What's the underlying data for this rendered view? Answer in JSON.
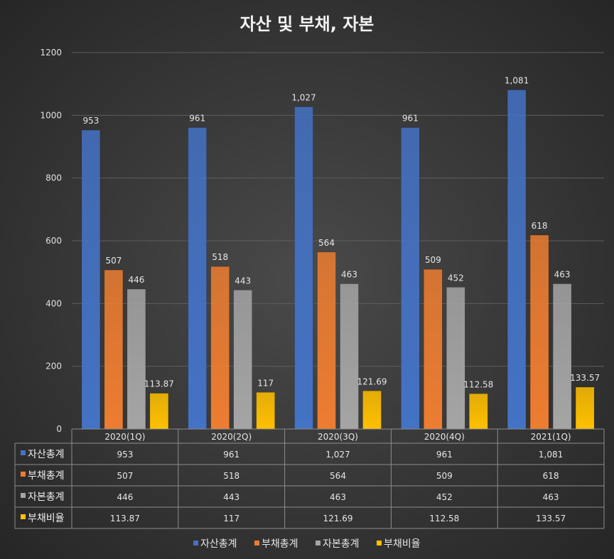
{
  "chart_data": {
    "type": "bar",
    "title": "자산 및 부채, 자본",
    "categories": [
      "2020(1Q)",
      "2020(2Q)",
      "2020(3Q)",
      "2020(4Q)",
      "2021(1Q)"
    ],
    "series": [
      {
        "name": "자산총계",
        "values": [
          953,
          961,
          1027,
          961,
          1081
        ],
        "labels": [
          "953",
          "961",
          "1,027",
          "961",
          "1,081"
        ],
        "color": "#4472c4"
      },
      {
        "name": "부채총계",
        "values": [
          507,
          518,
          564,
          509,
          618
        ],
        "labels": [
          "507",
          "518",
          "564",
          "509",
          "618"
        ],
        "color": "#ed7d31"
      },
      {
        "name": "자본총계",
        "values": [
          446,
          443,
          463,
          452,
          463
        ],
        "labels": [
          "446",
          "443",
          "463",
          "452",
          "463"
        ],
        "color": "#a5a5a5"
      },
      {
        "name": "부채비율",
        "values": [
          113.87,
          117,
          121.69,
          112.58,
          133.57
        ],
        "labels": [
          "113.87",
          "117",
          "121.69",
          "112.58",
          "133.57"
        ],
        "color": "#ffc000"
      }
    ],
    "ylim": [
      0,
      1200
    ],
    "yticks": [
      0,
      200,
      400,
      600,
      800,
      1000,
      1200
    ],
    "grid": true,
    "legend": "bottom",
    "data_table": true
  }
}
